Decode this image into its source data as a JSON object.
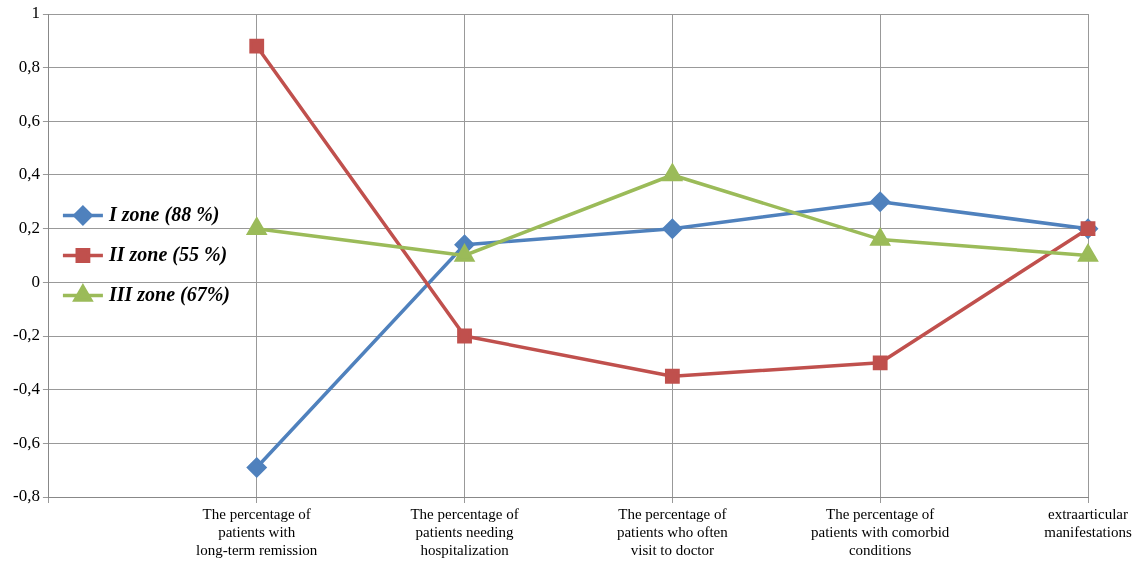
{
  "chart_data": {
    "type": "line",
    "categories": [
      null,
      "The percentage of patients with long-term remission",
      "The percentage of patients needing hospitalization",
      "The percentage of patients who often visit to doctor",
      "The percentage of patients with comorbid conditions",
      "extraarticular manifestations"
    ],
    "series": [
      {
        "name": "I zone (88 %)",
        "color": "#4f81bd",
        "marker": "diamond",
        "values": [
          null,
          -0.69,
          0.14,
          0.2,
          0.3,
          0.2
        ]
      },
      {
        "name": "II zone (55 %)",
        "color": "#c0504d",
        "marker": "square",
        "values": [
          null,
          0.88,
          -0.2,
          -0.35,
          -0.3,
          0.2
        ]
      },
      {
        "name": "III zone (67%)",
        "color": "#9bbb59",
        "marker": "triangle",
        "values": [
          null,
          0.2,
          0.1,
          0.4,
          0.16,
          0.1
        ]
      }
    ],
    "ylim": [
      -0.8,
      1
    ],
    "yticks": [
      {
        "value": -0.8,
        "label": "-0,8"
      },
      {
        "value": -0.6,
        "label": "-0,6"
      },
      {
        "value": -0.4,
        "label": "-0,4"
      },
      {
        "value": -0.2,
        "label": "-0,2"
      },
      0,
      {
        "value": 0.2,
        "label": "0,2"
      },
      {
        "value": 0.4,
        "label": "0,4"
      },
      {
        "value": 0.6,
        "label": "0,6"
      },
      {
        "value": 0.8,
        "label": "0,8"
      },
      1
    ],
    "grid": true,
    "legend": "left",
    "line_style": "solid"
  }
}
